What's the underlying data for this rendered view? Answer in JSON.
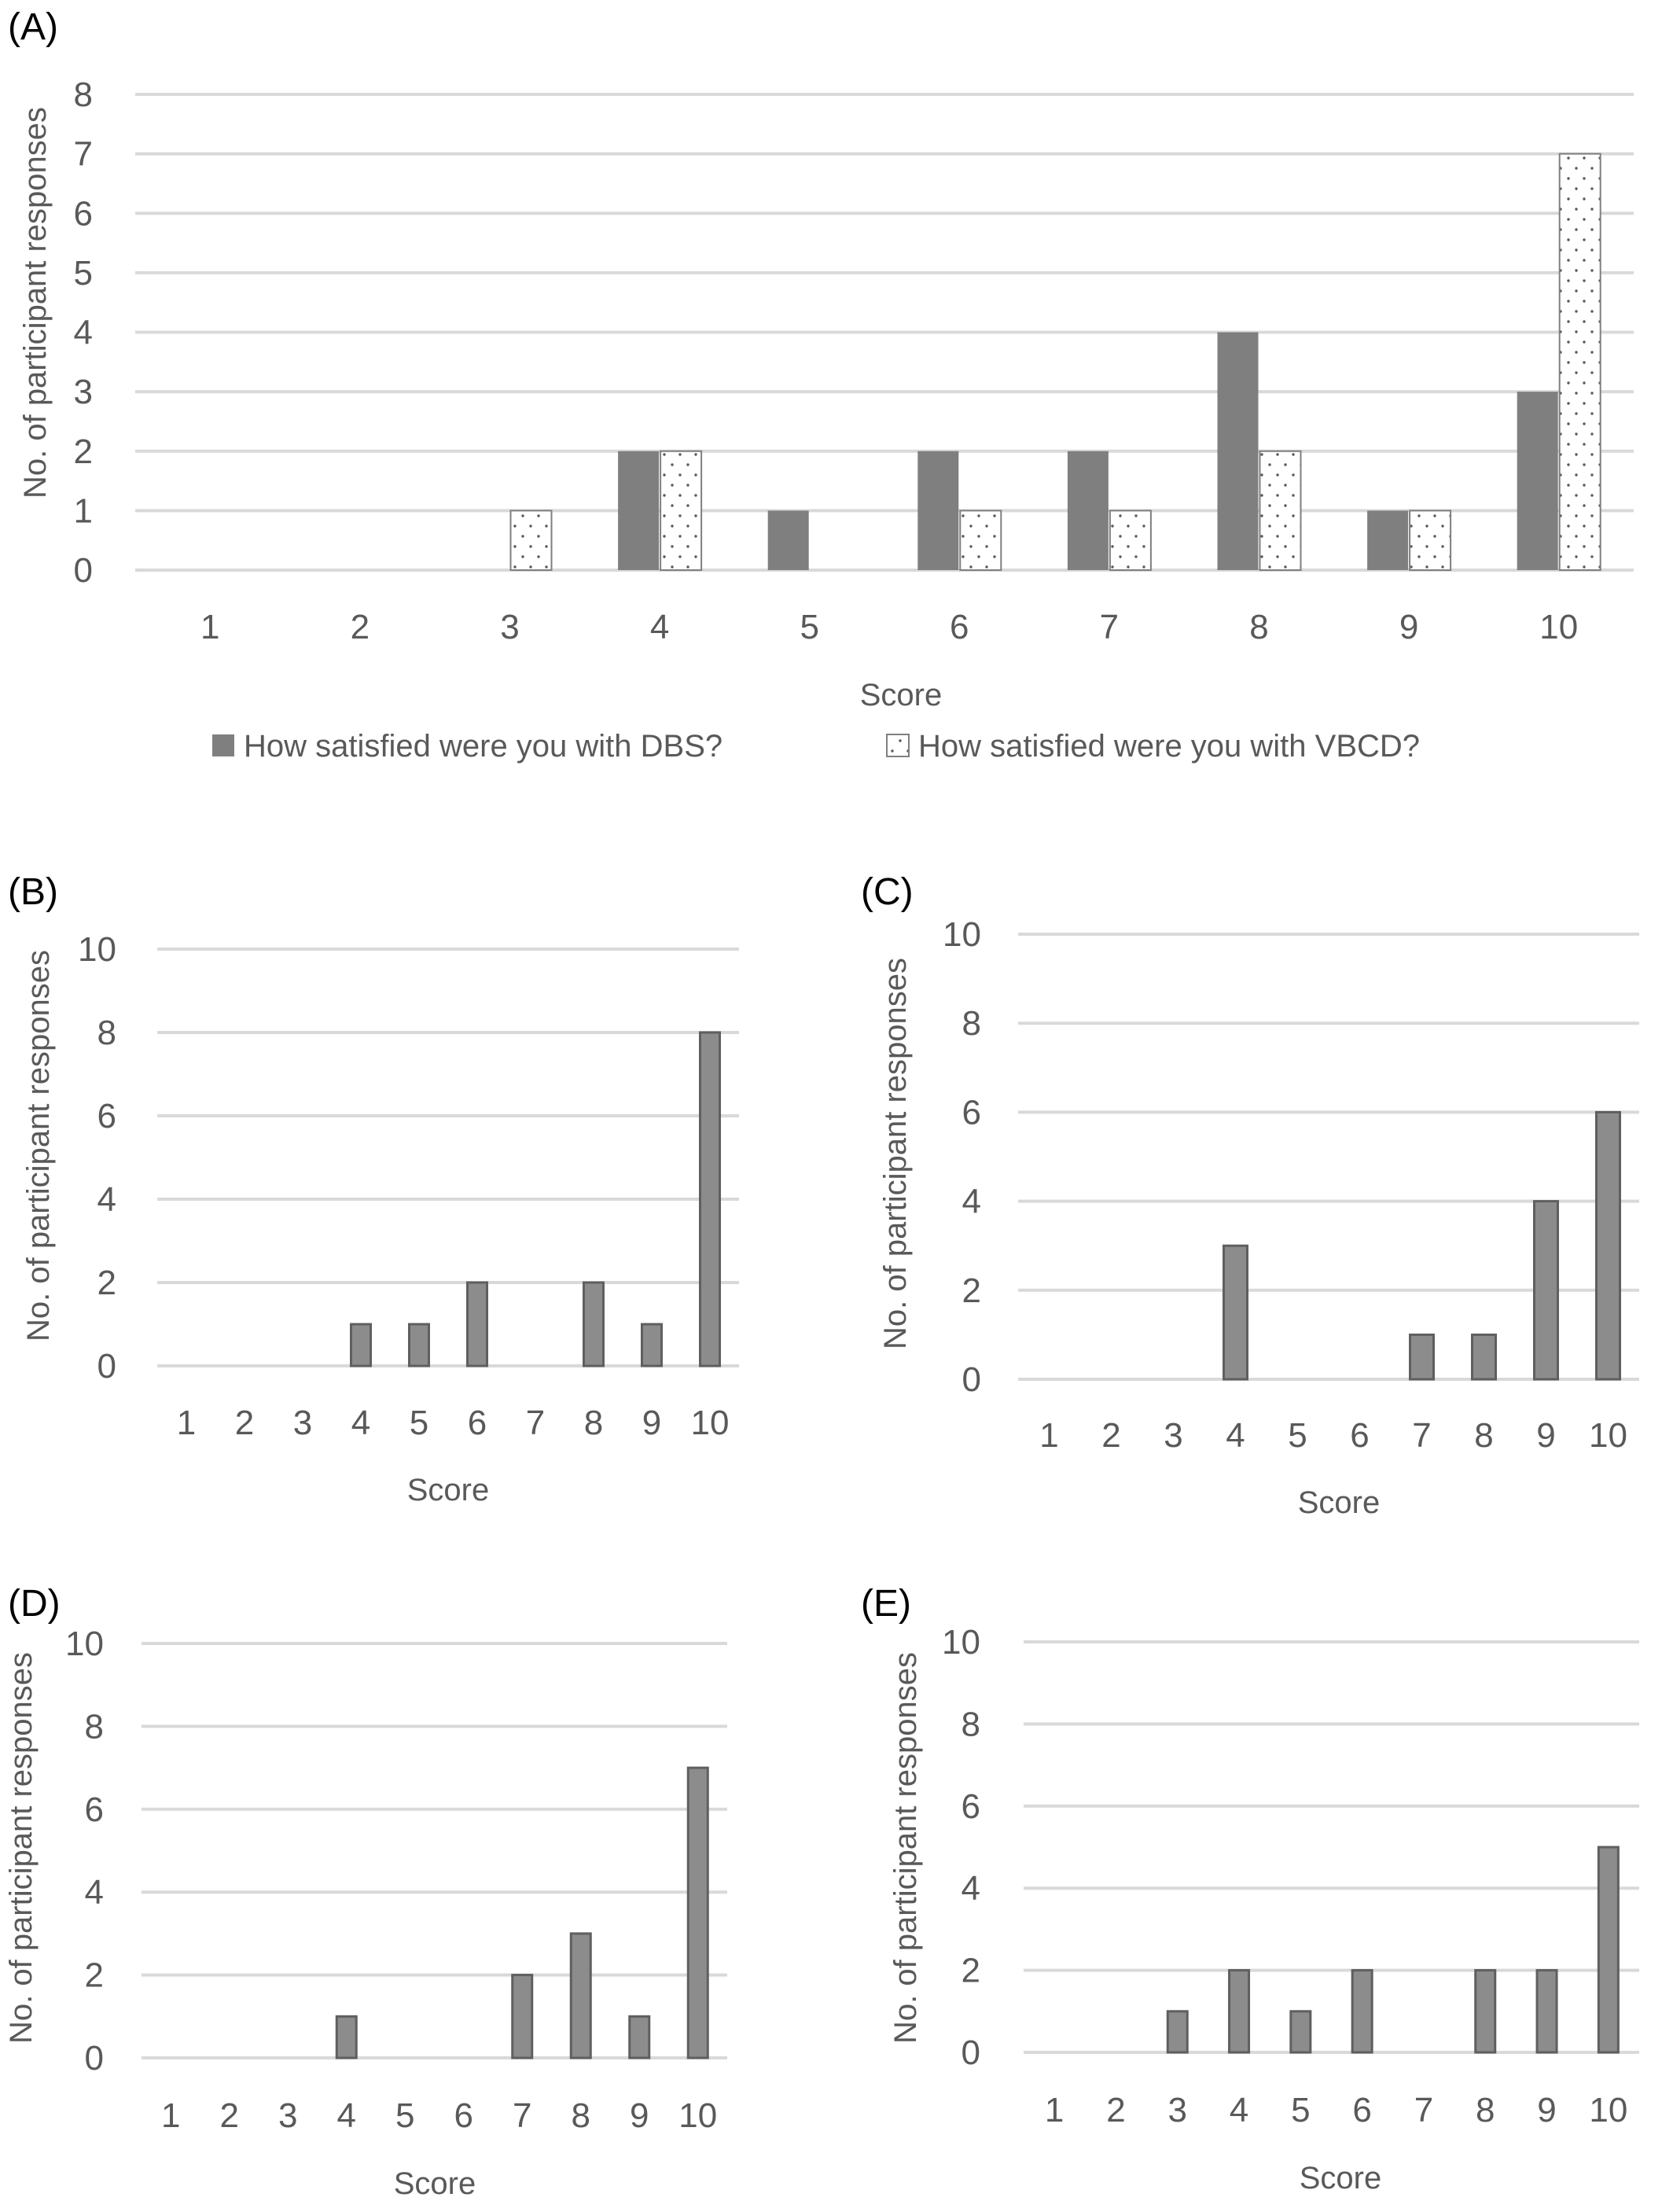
{
  "figure": {
    "colors": {
      "gridline": "#d9d9d9",
      "text": "#595959",
      "bar_fill_dark": "#7f7f7f",
      "bar_fill_light": "#8c8c8c",
      "bar_stroke": "#5f5f5f",
      "dotted_fill": "#ffffff",
      "dot": "#595959"
    }
  },
  "chart_data": [
    {
      "panel": "(A)",
      "type": "bar",
      "xlabel": "Score",
      "ylabel": "No. of  participant responses",
      "ylim": [
        0,
        8
      ],
      "yticks": [
        0,
        1,
        2,
        3,
        4,
        5,
        6,
        7,
        8
      ],
      "grid": true,
      "legend_position": "bottom",
      "categories": [
        "1",
        "2",
        "3",
        "4",
        "5",
        "6",
        "7",
        "8",
        "9",
        "10"
      ],
      "series": [
        {
          "name": "How satisfied were you with DBS?",
          "pattern": "solid",
          "values": [
            0,
            0,
            0,
            2,
            1,
            2,
            2,
            4,
            1,
            3
          ]
        },
        {
          "name": "How satisfied were you with VBCD?",
          "pattern": "dotted",
          "values": [
            0,
            0,
            1,
            2,
            0,
            1,
            1,
            2,
            1,
            7
          ]
        }
      ]
    },
    {
      "panel": "(B)",
      "type": "bar",
      "xlabel": "Score",
      "ylabel": "No. of participant responses",
      "ylim": [
        0,
        10
      ],
      "yticks": [
        0,
        2,
        4,
        6,
        8,
        10
      ],
      "grid": true,
      "categories": [
        "1",
        "2",
        "3",
        "4",
        "5",
        "6",
        "7",
        "8",
        "9",
        "10"
      ],
      "values": [
        0,
        0,
        0,
        1,
        1,
        2,
        0,
        2,
        1,
        8
      ]
    },
    {
      "panel": "(C)",
      "type": "bar",
      "xlabel": "Score",
      "ylabel": "No. of participant responses",
      "ylim": [
        0,
        10
      ],
      "yticks": [
        0,
        2,
        4,
        6,
        8,
        10
      ],
      "grid": true,
      "categories": [
        "1",
        "2",
        "3",
        "4",
        "5",
        "6",
        "7",
        "8",
        "9",
        "10"
      ],
      "values": [
        0,
        0,
        0,
        3,
        0,
        0,
        1,
        1,
        4,
        6
      ]
    },
    {
      "panel": "(D)",
      "type": "bar",
      "xlabel": "Score",
      "ylabel": "No. of participant responses",
      "ylim": [
        0,
        10
      ],
      "yticks": [
        0,
        2,
        4,
        6,
        8,
        10
      ],
      "grid": true,
      "categories": [
        "1",
        "2",
        "3",
        "4",
        "5",
        "6",
        "7",
        "8",
        "9",
        "10"
      ],
      "values": [
        0,
        0,
        0,
        1,
        0,
        0,
        2,
        3,
        1,
        7
      ]
    },
    {
      "panel": "(E)",
      "type": "bar",
      "xlabel": "Score",
      "ylabel": "No. of participant responses",
      "ylim": [
        0,
        10
      ],
      "yticks": [
        0,
        2,
        4,
        6,
        8,
        10
      ],
      "grid": true,
      "categories": [
        "1",
        "2",
        "3",
        "4",
        "5",
        "6",
        "7",
        "8",
        "9",
        "10"
      ],
      "values": [
        0,
        0,
        1,
        2,
        1,
        2,
        0,
        2,
        2,
        5
      ]
    }
  ]
}
